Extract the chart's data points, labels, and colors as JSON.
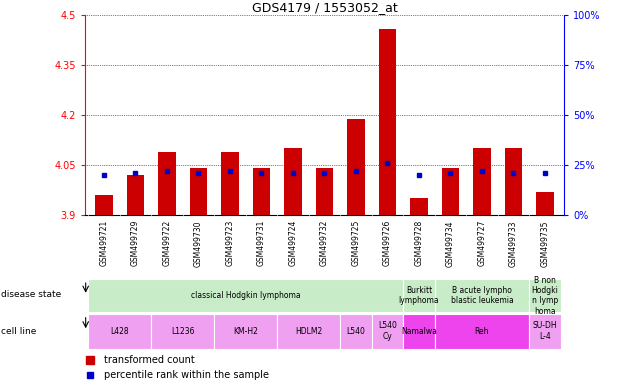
{
  "title": "GDS4179 / 1553052_at",
  "samples": [
    "GSM499721",
    "GSM499729",
    "GSM499722",
    "GSM499730",
    "GSM499723",
    "GSM499731",
    "GSM499724",
    "GSM499732",
    "GSM499725",
    "GSM499726",
    "GSM499728",
    "GSM499734",
    "GSM499727",
    "GSM499733",
    "GSM499735"
  ],
  "transformed_count": [
    3.96,
    4.02,
    4.09,
    4.04,
    4.09,
    4.04,
    4.1,
    4.04,
    4.19,
    4.46,
    3.95,
    4.04,
    4.1,
    4.1,
    3.97
  ],
  "percentile_rank": [
    20,
    21,
    22,
    21,
    22,
    21,
    21,
    21,
    22,
    26,
    20,
    21,
    22,
    21,
    21
  ],
  "y_min": 3.9,
  "y_max": 4.5,
  "y_ticks_left": [
    3.9,
    4.05,
    4.2,
    4.35,
    4.5
  ],
  "y_ticks_right": [
    0,
    25,
    50,
    75,
    100
  ],
  "bar_color": "#cc0000",
  "dot_color": "#0000cc",
  "tick_bg_color": "#c8c8c8",
  "disease_state_groups": [
    {
      "label": "classical Hodgkin lymphoma",
      "start": 0,
      "end": 9,
      "color": "#c8ecc8"
    },
    {
      "label": "Burkitt\nlymphoma",
      "start": 10,
      "end": 10,
      "color": "#c8ecc8"
    },
    {
      "label": "B acute lympho\nblastic leukemia",
      "start": 11,
      "end": 13,
      "color": "#c8ecc8"
    },
    {
      "label": "B non\nHodgki\nn lymp\nhoma",
      "start": 14,
      "end": 14,
      "color": "#c8ecc8"
    }
  ],
  "cell_line_groups": [
    {
      "label": "L428",
      "start": 0,
      "end": 1,
      "color": "#f0a0f0"
    },
    {
      "label": "L1236",
      "start": 2,
      "end": 3,
      "color": "#f0a0f0"
    },
    {
      "label": "KM-H2",
      "start": 4,
      "end": 5,
      "color": "#f0a0f0"
    },
    {
      "label": "HDLM2",
      "start": 6,
      "end": 7,
      "color": "#f0a0f0"
    },
    {
      "label": "L540",
      "start": 8,
      "end": 8,
      "color": "#f0a0f0"
    },
    {
      "label": "L540\nCy",
      "start": 9,
      "end": 9,
      "color": "#f0a0f0"
    },
    {
      "label": "Namalwa",
      "start": 10,
      "end": 10,
      "color": "#ee44ee"
    },
    {
      "label": "Reh",
      "start": 11,
      "end": 13,
      "color": "#ee44ee"
    },
    {
      "label": "SU-DH\nL-4",
      "start": 14,
      "end": 14,
      "color": "#f0a0f0"
    }
  ]
}
